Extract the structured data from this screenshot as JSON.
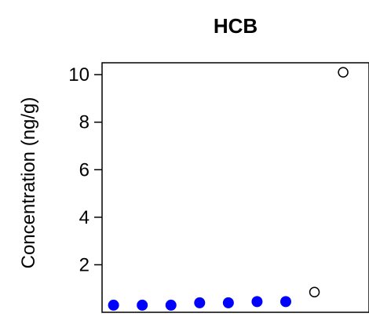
{
  "chart_data": {
    "type": "scatter",
    "title": "HCB",
    "xlabel": "",
    "ylabel": "Concentration (ng/g)",
    "ylim": [
      0.0,
      10.5
    ],
    "xlim": [
      0.6,
      9.9
    ],
    "yticks": [
      2,
      4,
      6,
      8,
      10
    ],
    "grid": false,
    "legend": "none",
    "series": [
      {
        "marker": "filled-circle",
        "color": "#0000ff",
        "x": [
          1,
          2,
          3,
          4,
          5,
          6,
          7
        ],
        "y": [
          0.3,
          0.3,
          0.3,
          0.4,
          0.4,
          0.45,
          0.45
        ]
      },
      {
        "marker": "open-circle",
        "color": "#000000",
        "x": [
          8,
          9
        ],
        "y": [
          0.85,
          10.1
        ]
      }
    ]
  }
}
